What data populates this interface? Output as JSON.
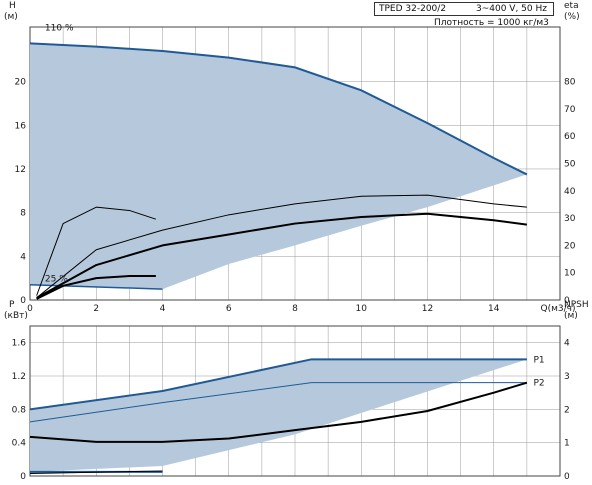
{
  "header": {
    "model": "TPED 32-200/2",
    "power": "3~400 V, 50 Hz",
    "density": "Плотность = 1000 кг/м3"
  },
  "labels": {
    "speed_max": "110 %",
    "speed_min": "25 %",
    "curve_p1": "P1",
    "curve_p2": "P2"
  },
  "colors": {
    "envelope_fill": "#b6c9dc",
    "envelope_edge": "#1f5a96",
    "curve": "#000000",
    "grid": "#9a9a9a"
  },
  "chart_data": [
    {
      "type": "line",
      "panel": "head",
      "x": {
        "label": "Q(м3/ч)",
        "range": [
          0,
          16
        ],
        "ticks": [
          "0",
          "2",
          "4",
          "6",
          "8",
          "10",
          "12",
          "14"
        ],
        "tick_values": [
          0,
          2,
          4,
          6,
          8,
          10,
          12,
          14
        ]
      },
      "y_left": {
        "label": "H",
        "unit": "(м)",
        "range": [
          0,
          25
        ],
        "ticks": [
          "0",
          "4",
          "8",
          "12",
          "16",
          "20"
        ],
        "tick_values": [
          0,
          4,
          8,
          12,
          16,
          20
        ]
      },
      "y_right": {
        "label": "eta",
        "unit": "(%)",
        "range": [
          0,
          100
        ],
        "ticks": [
          "0",
          "10",
          "20",
          "30",
          "40",
          "50",
          "60",
          "70",
          "80"
        ],
        "tick_values": [
          0,
          10,
          20,
          30,
          40,
          50,
          60,
          70,
          80
        ]
      },
      "grid": true,
      "envelope": {
        "upper": [
          [
            0,
            23.5
          ],
          [
            2,
            23.2
          ],
          [
            4,
            22.8
          ],
          [
            6,
            22.2
          ],
          [
            8,
            21.3
          ],
          [
            10,
            19.2
          ],
          [
            12,
            16.2
          ],
          [
            14,
            13.0
          ],
          [
            15,
            11.5
          ]
        ],
        "lower": [
          [
            15,
            11.5
          ],
          [
            12,
            8.5
          ],
          [
            10,
            6.8
          ],
          [
            8,
            5.0
          ],
          [
            6,
            3.3
          ],
          [
            4,
            1.0
          ],
          [
            0,
            1.4
          ]
        ]
      },
      "series": [
        {
          "style": "eta-max",
          "points": [
            [
              0.2,
              0.4
            ],
            [
              1,
              7
            ],
            [
              2,
              8.5
            ],
            [
              3,
              8.2
            ],
            [
              3.8,
              7.4
            ]
          ]
        },
        {
          "style": "eta-upper",
          "points": [
            [
              0.2,
              0.2
            ],
            [
              2,
              4.6
            ],
            [
              4,
              6.4
            ],
            [
              6,
              7.8
            ],
            [
              8,
              8.8
            ],
            [
              10,
              9.5
            ],
            [
              12,
              9.6
            ],
            [
              14,
              8.8
            ],
            [
              15,
              8.5
            ]
          ]
        },
        {
          "style": "eta-mid",
          "points": [
            [
              0.2,
              0.2
            ],
            [
              2,
              3.2
            ],
            [
              4,
              5.0
            ],
            [
              6,
              6.0
            ],
            [
              8,
              7.0
            ],
            [
              10,
              7.6
            ],
            [
              12,
              7.9
            ],
            [
              14,
              7.3
            ],
            [
              15,
              6.9
            ]
          ]
        },
        {
          "style": "eta-low",
          "points": [
            [
              0.2,
              0.1
            ],
            [
              1,
              1.3
            ],
            [
              2,
              2.0
            ],
            [
              3,
              2.2
            ],
            [
              3.8,
              2.2
            ]
          ]
        }
      ]
    },
    {
      "type": "line",
      "panel": "power",
      "x": {
        "range": [
          0,
          16
        ],
        "ticks": [],
        "tick_values": []
      },
      "y_left": {
        "label": "P",
        "unit": "(кВт)",
        "range": [
          0,
          1.8
        ],
        "ticks": [
          "0",
          "0.4",
          "0.8",
          "1.2",
          "1.6"
        ],
        "tick_values": [
          0,
          0.4,
          0.8,
          1.2,
          1.6
        ]
      },
      "y_right": {
        "label": "NPSH",
        "unit": "(м)",
        "range": [
          0,
          4.5
        ],
        "ticks": [
          "0",
          "1",
          "2",
          "3",
          "4"
        ],
        "tick_values": [
          0,
          1,
          2,
          3,
          4
        ]
      },
      "grid": true,
      "envelope": {
        "upper": [
          [
            0,
            0.8
          ],
          [
            4,
            1.02
          ],
          [
            8.5,
            1.4
          ],
          [
            15,
            1.4
          ]
        ],
        "lower": [
          [
            15,
            1.4
          ],
          [
            8,
            0.5
          ],
          [
            4,
            0.12
          ],
          [
            0,
            0.05
          ]
        ]
      },
      "series": [
        {
          "name": "P1",
          "style": "p1-edge",
          "points": [
            [
              0,
              0.8
            ],
            [
              4,
              1.02
            ],
            [
              8.5,
              1.4
            ],
            [
              15,
              1.4
            ]
          ]
        },
        {
          "style": "p1-inner",
          "points": [
            [
              0,
              0.65
            ],
            [
              4,
              0.88
            ],
            [
              8.5,
              1.12
            ],
            [
              15,
              1.12
            ]
          ]
        },
        {
          "name": "P2",
          "style": "p2",
          "points": [
            [
              0,
              0.47
            ],
            [
              2,
              0.41
            ],
            [
              4,
              0.41
            ],
            [
              6,
              0.45
            ],
            [
              8,
              0.55
            ],
            [
              10,
              0.65
            ],
            [
              12,
              0.78
            ],
            [
              14,
              1.0
            ],
            [
              15,
              1.12
            ]
          ]
        },
        {
          "style": "low-edge",
          "points": [
            [
              0,
              0.05
            ],
            [
              4,
              0.05
            ]
          ]
        },
        {
          "style": "low-inner",
          "points": [
            [
              0,
              0.03
            ],
            [
              4,
              0.06
            ]
          ]
        }
      ]
    }
  ]
}
